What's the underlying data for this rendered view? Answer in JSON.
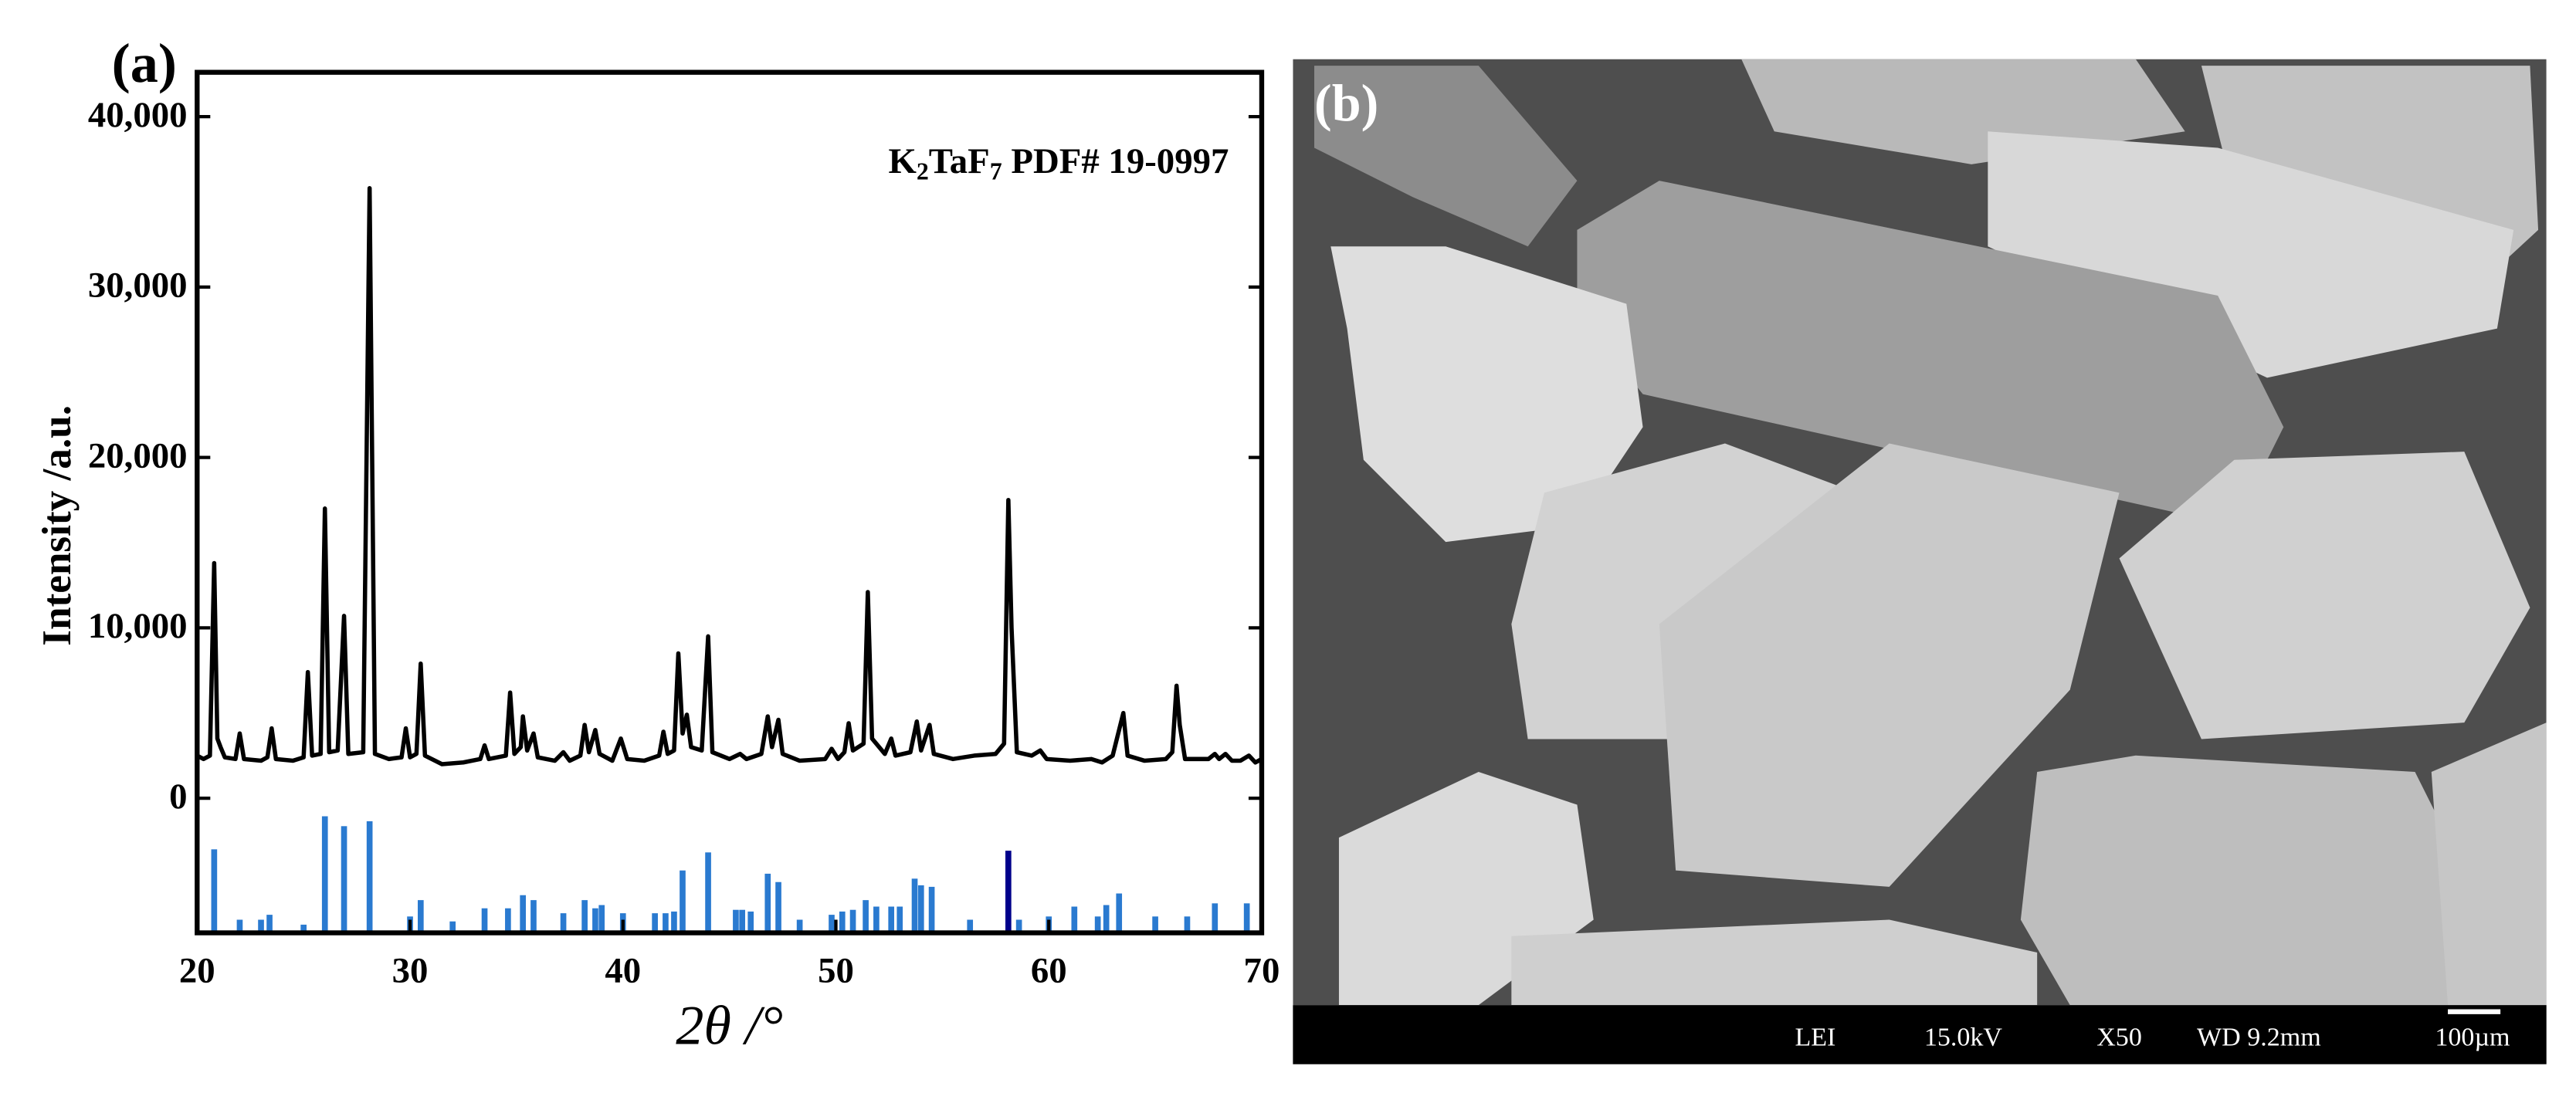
{
  "chart_data": {
    "type": "line",
    "panel_label": "(a)",
    "xlabel": "2θ /°",
    "ylabel": "Intensity /a.u.",
    "annotation": [
      {
        "text": "K"
      },
      {
        "text": "2",
        "sub": true
      },
      {
        "text": "TaF"
      },
      {
        "text": "7",
        "sub": true
      },
      {
        "text": " PDF# 19-0997"
      }
    ],
    "xlim": [
      20,
      70
    ],
    "xticks": [
      20,
      30,
      40,
      50,
      60,
      70
    ],
    "ylim": [
      -7900,
      42600
    ],
    "yticks": [
      0,
      {
        "value": 10000,
        "label": "10,000"
      },
      {
        "value": 20000,
        "label": "20,000"
      },
      {
        "value": 30000,
        "label": "30,000"
      },
      {
        "value": 40000,
        "label": "40,000"
      }
    ],
    "line": {
      "color": "#000000",
      "x": [
        20.0,
        20.3,
        20.6,
        20.8,
        20.95,
        21.1,
        21.3,
        21.8,
        22.0,
        22.2,
        23.0,
        23.3,
        23.5,
        23.7,
        24.5,
        25.0,
        25.2,
        25.4,
        25.8,
        26.0,
        26.2,
        26.6,
        26.9,
        27.1,
        27.8,
        28.1,
        28.35,
        29.0,
        29.6,
        29.8,
        30.0,
        30.3,
        30.5,
        30.7,
        31.5,
        32.5,
        33.3,
        33.5,
        33.7,
        34.5,
        34.7,
        34.9,
        35.2,
        35.3,
        35.5,
        35.8,
        36.0,
        36.8,
        37.2,
        37.5,
        38.0,
        38.2,
        38.4,
        38.7,
        38.9,
        39.5,
        39.9,
        40.2,
        41.0,
        41.7,
        41.9,
        42.1,
        42.4,
        42.6,
        42.8,
        43.0,
        43.2,
        43.7,
        44.0,
        44.2,
        45.0,
        45.5,
        45.8,
        46.5,
        46.8,
        47.0,
        47.3,
        47.5,
        48.3,
        49.5,
        49.8,
        50.1,
        50.4,
        50.6,
        50.8,
        51.3,
        51.5,
        51.7,
        52.3,
        52.6,
        52.8,
        53.5,
        53.8,
        54.0,
        54.4,
        54.6,
        55.5,
        56.5,
        57.5,
        57.9,
        58.1,
        58.25,
        58.5,
        59.2,
        59.6,
        59.9,
        61.0,
        62.0,
        62.5,
        63.0,
        63.5,
        63.7,
        64.5,
        65.5,
        65.8,
        66.0,
        66.15,
        66.4,
        67.5,
        67.8,
        68.0,
        68.3,
        68.6,
        69.0,
        69.4,
        69.7,
        70.0
      ],
      "values": [
        2500,
        2300,
        2500,
        13800,
        3500,
        3000,
        2400,
        2300,
        3800,
        2300,
        2200,
        2400,
        4100,
        2300,
        2200,
        2400,
        7400,
        2500,
        2600,
        17000,
        2700,
        2800,
        10700,
        2600,
        2700,
        35800,
        2600,
        2300,
        2400,
        4100,
        2400,
        2600,
        7900,
        2500,
        2000,
        2100,
        2300,
        3100,
        2300,
        2500,
        6200,
        2600,
        3000,
        4800,
        2800,
        3800,
        2400,
        2200,
        2700,
        2200,
        2500,
        4300,
        2700,
        4000,
        2600,
        2200,
        3500,
        2300,
        2200,
        2500,
        3900,
        2600,
        2800,
        8500,
        3800,
        4900,
        3000,
        2800,
        9500,
        2700,
        2300,
        2600,
        2300,
        2600,
        4800,
        3000,
        4600,
        2600,
        2200,
        2300,
        2900,
        2300,
        2700,
        4400,
        2800,
        3200,
        12100,
        3500,
        2600,
        3500,
        2500,
        2700,
        4500,
        2800,
        4300,
        2600,
        2300,
        2500,
        2600,
        3200,
        17500,
        10000,
        2700,
        2500,
        2800,
        2300,
        2200,
        2300,
        2100,
        2500,
        5000,
        2500,
        2200,
        2300,
        2700,
        6600,
        4300,
        2300,
        2300,
        2600,
        2300,
        2600,
        2200,
        2200,
        2500,
        2100,
        2300
      ]
    },
    "sticks": {
      "type": "bar",
      "x": [
        20.8,
        22.0,
        23.0,
        23.4,
        25.0,
        26.0,
        26.9,
        28.1,
        30.0,
        30.5,
        32.0,
        33.5,
        34.6,
        35.3,
        35.8,
        37.2,
        38.2,
        38.7,
        39.0,
        40.0,
        41.5,
        42.0,
        42.4,
        42.8,
        44.0,
        45.3,
        45.6,
        46.0,
        46.8,
        47.3,
        48.3,
        49.8,
        50.3,
        50.8,
        51.4,
        51.9,
        52.6,
        53.0,
        53.7,
        54.0,
        54.5,
        56.3,
        58.1,
        58.6,
        60.0,
        61.2,
        62.3,
        62.7,
        63.3,
        65.0,
        66.5,
        67.8,
        69.3
      ],
      "values": [
        -3000,
        -7130,
        -7130,
        -6840,
        -7420,
        -1060,
        -1640,
        -1350,
        -6940,
        -5980,
        -7230,
        -6460,
        -6460,
        -5690,
        -5980,
        -6750,
        -5980,
        -6460,
        -6270,
        -6750,
        -6750,
        -6750,
        -6650,
        -4240,
        -3180,
        -6550,
        -6550,
        -6650,
        -4430,
        -4920,
        -7130,
        -6840,
        -6650,
        -6550,
        -5980,
        -6360,
        -6360,
        -6360,
        -4720,
        -5110,
        -5200,
        -7130,
        -3080,
        -7130,
        -6940,
        -6360,
        -6940,
        -6270,
        -5590,
        -6940,
        -6940,
        -6170,
        -6170
      ],
      "colors": [
        "#2a7ad0",
        "#2a7ad0",
        "#2a7ad0",
        "#2a7ad0",
        "#2a7ad0",
        "#2a7ad0",
        "#2a7ad0",
        "#2a7ad0",
        "#2a7ad0",
        "#2a7ad0",
        "#2a7ad0",
        "#2a7ad0",
        "#2a7ad0",
        "#2a7ad0",
        "#2a7ad0",
        "#2a7ad0",
        "#2a7ad0",
        "#2a7ad0",
        "#2a7ad0",
        "#2a7ad0",
        "#2a7ad0",
        "#2a7ad0",
        "#2a7ad0",
        "#2a7ad0",
        "#2a7ad0",
        "#2a7ad0",
        "#2a7ad0",
        "#2a7ad0",
        "#2a7ad0",
        "#2a7ad0",
        "#2a7ad0",
        "#2a7ad0",
        "#2a7ad0",
        "#2a7ad0",
        "#2a7ad0",
        "#2a7ad0",
        "#2a7ad0",
        "#2a7ad0",
        "#2a7ad0",
        "#2a7ad0",
        "#2a7ad0",
        "#2a7ad0",
        "#00008b",
        "#2a7ad0",
        "#2a7ad0",
        "#2a7ad0",
        "#2a7ad0",
        "#2a7ad0",
        "#2a7ad0",
        "#2a7ad0",
        "#2a7ad0",
        "#2a7ad0",
        "#2a7ad0"
      ]
    }
  },
  "sem": {
    "panel_label": "(b)",
    "info": [
      "LEI",
      "15.0kV",
      "X50",
      "WD 9.2mm",
      "100µm"
    ]
  }
}
